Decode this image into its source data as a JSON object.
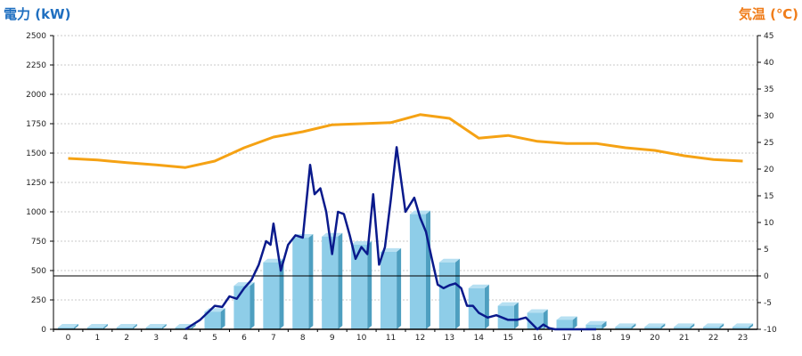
{
  "chart_data": {
    "type": "bar+line",
    "y_left_label": "電力 (kW)",
    "y_right_label": "気温 (℃)",
    "y_left_range": [
      0,
      2500
    ],
    "y_left_ticks": [
      "0",
      "250",
      "500",
      "750",
      "1000",
      "1250",
      "1500",
      "1750",
      "2000",
      "2250",
      "2500"
    ],
    "y_right_range": [
      -10,
      45
    ],
    "y_right_ticks": [
      "-10",
      "-5",
      "0",
      "5",
      "10",
      "15",
      "20",
      "25",
      "30",
      "35",
      "40",
      "45"
    ],
    "categories": [
      "0",
      "1",
      "2",
      "3",
      "4",
      "5",
      "6",
      "7",
      "8",
      "9",
      "10",
      "11",
      "12",
      "13",
      "14",
      "15",
      "16",
      "17",
      "18",
      "19",
      "20",
      "21",
      "22",
      "23"
    ],
    "grid": true,
    "bars": [
      15,
      15,
      15,
      15,
      15,
      150,
      370,
      570,
      780,
      790,
      720,
      660,
      980,
      570,
      350,
      200,
      140,
      80,
      40,
      20,
      20,
      20,
      20,
      20
    ],
    "temperature": [
      22,
      21.7,
      21.2,
      20.8,
      20.3,
      21.5,
      24,
      26,
      27,
      28.3,
      28.5,
      28.7,
      30.2,
      29.5,
      25.8,
      26.3,
      25.2,
      24.8,
      24.8,
      24,
      23.5,
      22.5,
      21.8,
      21.5
    ],
    "power_minutes": {
      "x": [
        4,
        4.5,
        5,
        5.25,
        5.5,
        5.75,
        6,
        6.25,
        6.5,
        6.75,
        6.9,
        7,
        7.25,
        7.5,
        7.75,
        8,
        8.25,
        8.4,
        8.6,
        8.8,
        9,
        9.2,
        9.4,
        9.6,
        9.8,
        10,
        10.2,
        10.4,
        10.6,
        10.8,
        11,
        11.2,
        11.5,
        11.8,
        12,
        12.2,
        12.4,
        12.6,
        12.8,
        13,
        13.2,
        13.4,
        13.6,
        13.8,
        14,
        14.3,
        14.6,
        15,
        15.3,
        15.6,
        16,
        16.2,
        16.4,
        16.6,
        16.8,
        17,
        17.3,
        17.6,
        17.8,
        18
      ],
      "values": [
        0,
        80,
        200,
        190,
        280,
        260,
        350,
        420,
        550,
        750,
        720,
        900,
        500,
        720,
        800,
        780,
        1400,
        1150,
        1200,
        1000,
        640,
        1000,
        980,
        800,
        600,
        700,
        640,
        1150,
        550,
        700,
        1100,
        1550,
        1000,
        1120,
        950,
        830,
        600,
        380,
        350,
        375,
        390,
        350,
        200,
        200,
        140,
        100,
        120,
        80,
        80,
        100,
        0,
        40,
        10,
        0,
        0,
        0,
        0,
        0,
        0,
        0
      ]
    },
    "colors": {
      "bar_face": "#8ecde8",
      "bar_side": "#4e9fc0",
      "power_line": "#0a1a8c",
      "temp_line": "#f5a214",
      "left_title": "#1f6fc0",
      "right_title": "#f07d1a"
    }
  }
}
